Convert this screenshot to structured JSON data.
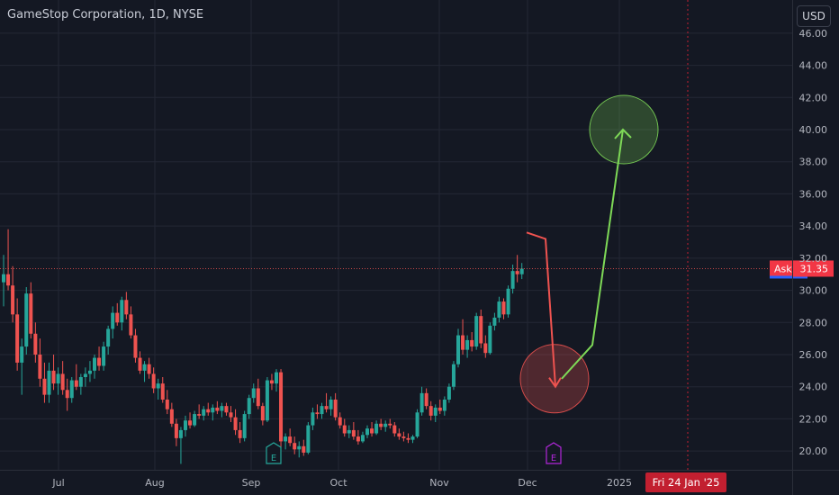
{
  "header": {
    "title": "GameStop Corporation, 1D, NYSE",
    "currency_label": "USD"
  },
  "colors": {
    "background": "#141823",
    "up": "#26a69a",
    "down": "#ef5350",
    "grid": "#232735",
    "axis_text": "#b2b5be",
    "price_tag": "#f23645",
    "date_tag": "#c21f30",
    "earnings_green": "#26a69a",
    "earnings_purple": "#b026d9",
    "target_green": "#7ed957",
    "target_red": "#ef5350"
  },
  "chart_data": {
    "type": "candlestick",
    "title": "GameStop Corporation, 1D, NYSE",
    "ylabel": "USD",
    "ylim": [
      19.0,
      47.0
    ],
    "y_ticks": [
      "46.00",
      "44.00",
      "42.00",
      "40.00",
      "38.00",
      "36.00",
      "34.00",
      "32.00",
      "30.00",
      "28.00",
      "26.00",
      "24.00",
      "22.00",
      "20.00"
    ],
    "x_ticks": [
      "Jul",
      "Aug",
      "Sep",
      "Oct",
      "Nov",
      "Dec",
      "2025"
    ],
    "last_price": {
      "label": "Ask",
      "value": "31.35",
      "number": 31.35
    },
    "crosshair_date": "Fri 24 Jan '25",
    "earnings_markers": [
      {
        "label": "E",
        "color": "green",
        "near": "Sep"
      },
      {
        "label": "E",
        "color": "purple",
        "near": "Dec"
      }
    ],
    "candles": [
      [
        30.5,
        32.2,
        29.0,
        31.0
      ],
      [
        31.0,
        33.8,
        30.0,
        30.3
      ],
      [
        30.3,
        31.5,
        28.0,
        28.5
      ],
      [
        28.5,
        29.5,
        25.0,
        25.5
      ],
      [
        25.5,
        27.0,
        23.5,
        26.5
      ],
      [
        26.5,
        30.2,
        26.0,
        29.8
      ],
      [
        29.8,
        30.5,
        27.0,
        27.3
      ],
      [
        27.3,
        28.0,
        25.5,
        26.0
      ],
      [
        26.0,
        27.0,
        24.0,
        24.5
      ],
      [
        24.5,
        25.5,
        23.0,
        23.5
      ],
      [
        23.5,
        25.5,
        23.0,
        25.0
      ],
      [
        25.0,
        26.0,
        23.8,
        24.2
      ],
      [
        24.2,
        25.2,
        23.5,
        24.8
      ],
      [
        24.8,
        25.6,
        23.5,
        23.8
      ],
      [
        23.8,
        24.5,
        22.5,
        23.3
      ],
      [
        23.3,
        24.6,
        23.0,
        24.4
      ],
      [
        24.4,
        25.4,
        23.8,
        24.0
      ],
      [
        24.0,
        24.8,
        23.5,
        24.6
      ],
      [
        24.6,
        25.2,
        24.0,
        24.8
      ],
      [
        24.8,
        25.6,
        24.3,
        25.0
      ],
      [
        25.0,
        26.0,
        24.5,
        25.8
      ],
      [
        25.8,
        26.5,
        25.0,
        25.3
      ],
      [
        25.3,
        26.8,
        25.0,
        26.5
      ],
      [
        26.5,
        27.8,
        26.0,
        27.6
      ],
      [
        27.6,
        29.0,
        27.0,
        28.6
      ],
      [
        28.6,
        29.2,
        27.8,
        28.0
      ],
      [
        28.0,
        29.6,
        27.5,
        29.4
      ],
      [
        29.4,
        29.9,
        28.2,
        28.5
      ],
      [
        28.5,
        29.0,
        27.0,
        27.2
      ],
      [
        27.2,
        27.6,
        25.5,
        25.8
      ],
      [
        25.8,
        26.2,
        24.8,
        25.0
      ],
      [
        25.0,
        25.6,
        24.3,
        25.4
      ],
      [
        25.4,
        25.8,
        24.5,
        24.8
      ],
      [
        24.8,
        25.2,
        23.6,
        23.9
      ],
      [
        23.9,
        24.5,
        23.2,
        24.2
      ],
      [
        24.2,
        24.6,
        23.0,
        23.2
      ],
      [
        23.2,
        23.8,
        22.3,
        22.6
      ],
      [
        22.6,
        23.0,
        21.5,
        21.7
      ],
      [
        21.7,
        22.0,
        20.3,
        20.8
      ],
      [
        20.8,
        21.5,
        19.2,
        21.3
      ],
      [
        21.3,
        22.2,
        20.9,
        21.9
      ],
      [
        21.9,
        22.4,
        21.4,
        21.6
      ],
      [
        21.6,
        22.5,
        21.5,
        22.3
      ],
      [
        22.3,
        22.9,
        22.0,
        22.2
      ],
      [
        22.2,
        22.8,
        21.9,
        22.6
      ],
      [
        22.6,
        23.0,
        22.2,
        22.4
      ],
      [
        22.4,
        22.9,
        21.9,
        22.7
      ],
      [
        22.7,
        23.1,
        22.3,
        22.5
      ],
      [
        22.5,
        23.0,
        22.1,
        22.8
      ],
      [
        22.8,
        23.0,
        22.2,
        22.4
      ],
      [
        22.4,
        22.8,
        21.8,
        22.1
      ],
      [
        22.1,
        22.6,
        21.0,
        21.3
      ],
      [
        21.3,
        21.8,
        20.5,
        20.8
      ],
      [
        20.8,
        22.5,
        20.6,
        22.3
      ],
      [
        22.3,
        23.5,
        22.0,
        23.3
      ],
      [
        23.3,
        24.2,
        23.0,
        23.9
      ],
      [
        23.9,
        24.5,
        22.6,
        22.8
      ],
      [
        22.8,
        23.0,
        21.6,
        21.9
      ],
      [
        21.9,
        24.6,
        21.8,
        24.4
      ],
      [
        24.4,
        24.8,
        23.8,
        24.2
      ],
      [
        24.2,
        25.1,
        23.7,
        24.9
      ],
      [
        24.9,
        25.1,
        20.2,
        20.6
      ],
      [
        20.6,
        21.1,
        20.1,
        20.9
      ],
      [
        20.9,
        21.4,
        20.3,
        20.5
      ],
      [
        20.5,
        20.9,
        19.8,
        20.1
      ],
      [
        20.1,
        20.6,
        19.6,
        20.3
      ],
      [
        20.3,
        20.7,
        19.7,
        19.9
      ],
      [
        19.9,
        21.8,
        19.8,
        21.6
      ],
      [
        21.6,
        22.7,
        21.3,
        22.4
      ],
      [
        22.4,
        22.9,
        22.0,
        22.3
      ],
      [
        22.3,
        23.0,
        22.0,
        22.8
      ],
      [
        22.8,
        23.6,
        22.4,
        22.6
      ],
      [
        22.6,
        23.4,
        22.2,
        23.2
      ],
      [
        23.2,
        23.6,
        21.9,
        22.1
      ],
      [
        22.1,
        22.4,
        21.4,
        21.6
      ],
      [
        21.6,
        22.0,
        20.9,
        21.1
      ],
      [
        21.1,
        21.6,
        20.8,
        21.3
      ],
      [
        21.3,
        21.8,
        20.7,
        20.9
      ],
      [
        20.9,
        21.3,
        20.4,
        20.6
      ],
      [
        20.6,
        21.2,
        20.5,
        21.0
      ],
      [
        21.0,
        21.6,
        20.8,
        21.4
      ],
      [
        21.4,
        21.8,
        20.9,
        21.1
      ],
      [
        21.1,
        21.9,
        21.0,
        21.7
      ],
      [
        21.7,
        22.0,
        21.3,
        21.5
      ],
      [
        21.5,
        21.9,
        21.2,
        21.7
      ],
      [
        21.7,
        22.0,
        21.4,
        21.6
      ],
      [
        21.6,
        21.8,
        20.9,
        21.1
      ],
      [
        21.1,
        21.4,
        20.7,
        20.9
      ],
      [
        20.9,
        21.2,
        20.6,
        20.8
      ],
      [
        20.8,
        21.1,
        20.5,
        20.7
      ],
      [
        20.7,
        21.0,
        20.5,
        20.9
      ],
      [
        20.9,
        22.6,
        20.8,
        22.4
      ],
      [
        22.4,
        24.0,
        22.2,
        23.6
      ],
      [
        23.6,
        23.9,
        22.6,
        22.8
      ],
      [
        22.8,
        23.1,
        21.9,
        22.2
      ],
      [
        22.2,
        22.9,
        21.8,
        22.7
      ],
      [
        22.7,
        23.2,
        22.3,
        22.5
      ],
      [
        22.5,
        23.4,
        22.2,
        23.2
      ],
      [
        23.2,
        24.2,
        23.0,
        24.0
      ],
      [
        24.0,
        25.6,
        23.8,
        25.4
      ],
      [
        25.4,
        27.6,
        25.2,
        27.2
      ],
      [
        27.2,
        28.2,
        26.0,
        26.3
      ],
      [
        26.3,
        27.2,
        25.8,
        26.9
      ],
      [
        26.9,
        27.4,
        26.2,
        26.5
      ],
      [
        26.5,
        28.6,
        26.3,
        28.4
      ],
      [
        28.4,
        28.8,
        26.4,
        26.7
      ],
      [
        26.7,
        27.2,
        25.8,
        26.1
      ],
      [
        26.1,
        28.0,
        26.0,
        27.8
      ],
      [
        27.8,
        28.6,
        27.5,
        28.3
      ],
      [
        28.3,
        29.6,
        28.0,
        29.3
      ],
      [
        29.3,
        29.5,
        28.2,
        28.5
      ],
      [
        28.5,
        30.3,
        28.3,
        30.1
      ],
      [
        30.1,
        31.6,
        29.8,
        31.2
      ],
      [
        31.2,
        32.2,
        30.5,
        31.0
      ],
      [
        31.0,
        31.7,
        30.7,
        31.35
      ]
    ]
  },
  "annotations": {
    "circles": [
      {
        "price": 40.0,
        "color": "green"
      },
      {
        "price": 24.5,
        "color": "red"
      }
    ],
    "red_arrow_points": [
      [
        33.6,
        33.2
      ],
      [
        24.0,
        24.0
      ]
    ],
    "green_arrow_points": [
      [
        24.5,
        26.6
      ],
      [
        40.0,
        40.0
      ]
    ]
  }
}
